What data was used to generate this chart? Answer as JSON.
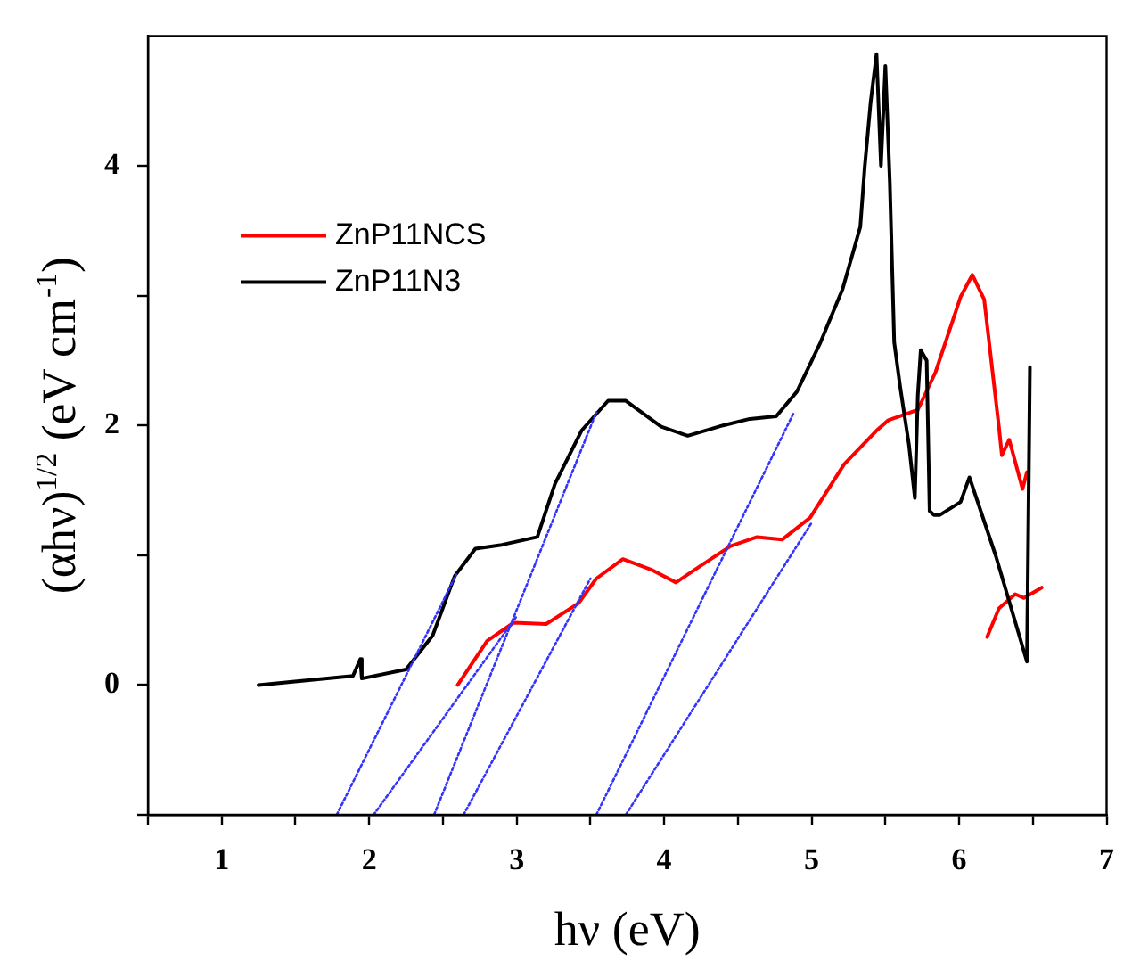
{
  "chart_data": {
    "type": "line",
    "xlabel": "hν (eV)",
    "ylabel": "(αhν)$^{1/2}$ (eV cm$^{-1}$)",
    "xlim": [
      0.5,
      7
    ],
    "xticks": [
      {
        "value": 0.5,
        "label": null
      },
      1,
      {
        "value": 1.5,
        "label": null
      },
      2,
      {
        "value": 2.5,
        "label": null
      },
      3,
      {
        "value": 3.5,
        "label": null
      },
      4,
      {
        "value": 4.5,
        "label": null
      },
      5,
      {
        "value": 5.5,
        "label": null
      },
      6,
      {
        "value": 6.5,
        "label": null
      },
      7
    ],
    "ylim": [
      -1,
      5
    ],
    "yticks": [
      {
        "value": -1,
        "label": null
      },
      0,
      {
        "value": 1,
        "label": null
      },
      2,
      {
        "value": 3,
        "label": null
      },
      4
    ],
    "legend": "top left",
    "marker": "none",
    "series": [
      {
        "name": "ZnP11NCS",
        "color": "#ff0000",
        "x": [
          2.6,
          2.8,
          2.98,
          3.2,
          3.42,
          3.54,
          3.72,
          3.91,
          4.08,
          4.25,
          4.45,
          4.63,
          4.8,
          4.99,
          5.22,
          5.44,
          5.52,
          5.72,
          5.84,
          6.01,
          6.09,
          6.17,
          6.27,
          6.29,
          6.34,
          6.43,
          6.46,
          null,
          6.19,
          6.27,
          6.38,
          6.44,
          6.56
        ],
        "values": [
          0.0,
          0.34,
          0.48,
          0.47,
          0.63,
          0.82,
          0.97,
          0.89,
          0.79,
          0.92,
          1.07,
          1.14,
          1.12,
          1.29,
          1.7,
          1.96,
          2.04,
          2.12,
          2.41,
          2.99,
          3.16,
          2.97,
          1.99,
          1.77,
          1.89,
          1.51,
          1.64,
          null,
          0.37,
          0.59,
          0.7,
          0.67,
          0.75
        ]
      },
      {
        "name": "ZnP11N3",
        "color": "#000000",
        "x": [
          1.25,
          1.89,
          1.94,
          1.95,
          2.25,
          2.43,
          2.58,
          2.72,
          2.9,
          3.14,
          3.26,
          3.44,
          3.62,
          3.74,
          3.98,
          4.16,
          4.4,
          4.58,
          4.76,
          4.9,
          5.06,
          5.21,
          5.33,
          5.36,
          5.4,
          5.44,
          5.47,
          5.5,
          5.53,
          5.56,
          5.6,
          5.66,
          5.7,
          5.72,
          5.74,
          5.78,
          5.8,
          5.83,
          5.87,
          6.01,
          6.07,
          6.25,
          6.46,
          6.48
        ],
        "values": [
          0.0,
          0.07,
          0.2,
          0.05,
          0.12,
          0.38,
          0.84,
          1.05,
          1.08,
          1.14,
          1.55,
          1.96,
          2.19,
          2.19,
          1.99,
          1.92,
          2.0,
          2.05,
          2.07,
          2.26,
          2.64,
          3.05,
          3.53,
          3.99,
          4.49,
          4.86,
          4.0,
          4.77,
          3.88,
          2.64,
          2.3,
          1.85,
          1.44,
          2.23,
          2.58,
          2.5,
          1.34,
          1.31,
          1.31,
          1.41,
          1.6,
          0.99,
          0.18,
          2.45
        ]
      },
      {
        "type": "line",
        "color": "#3333ff",
        "line_style": "dotted",
        "x": [
          1.78,
          2.59
        ],
        "values": [
          -1,
          0.85
        ]
      },
      {
        "type": "line",
        "color": "#3333ff",
        "line_style": "dotted",
        "x": [
          2.03,
          3.0
        ],
        "values": [
          -1,
          0.53
        ]
      },
      {
        "type": "line",
        "color": "#3333ff",
        "line_style": "dotted",
        "x": [
          2.44,
          3.54
        ],
        "values": [
          -1,
          2.1
        ]
      },
      {
        "type": "line",
        "color": "#3333ff",
        "line_style": "dotted",
        "x": [
          2.64,
          3.5
        ],
        "values": [
          -1,
          0.82
        ]
      },
      {
        "type": "line",
        "color": "#3333ff",
        "line_style": "dotted",
        "x": [
          3.54,
          4.88
        ],
        "values": [
          -1,
          2.1
        ]
      },
      {
        "type": "line",
        "color": "#3333ff",
        "line_style": "dotted",
        "x": [
          3.74,
          5.0
        ],
        "values": [
          -1,
          1.25
        ]
      }
    ]
  }
}
